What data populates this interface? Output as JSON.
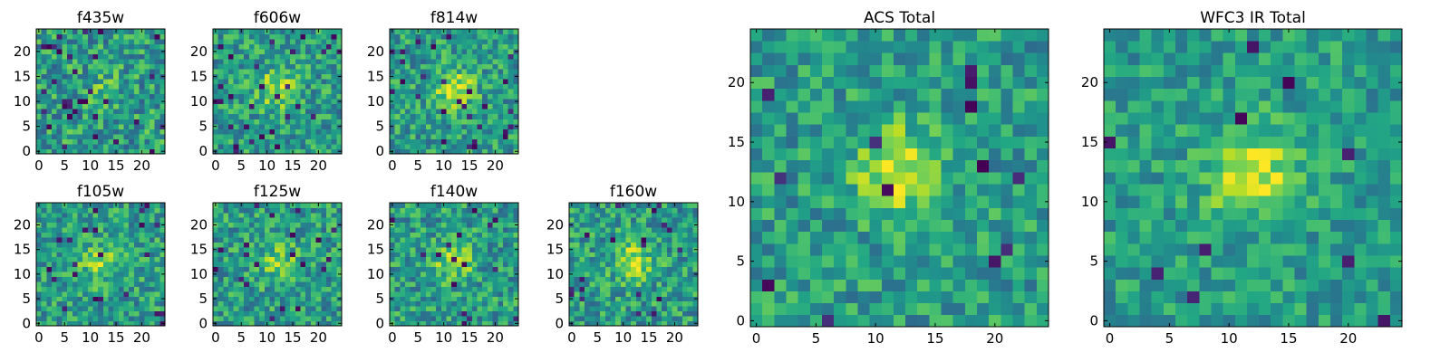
{
  "chart_data": [
    {
      "type": "heatmap",
      "title": "f435w",
      "size": 25,
      "xticks": [
        0,
        5,
        10,
        15,
        20
      ],
      "yticks": [
        0,
        5,
        10,
        15,
        20
      ],
      "xlim": [
        -0.5,
        24.5
      ],
      "ylim": [
        -0.5,
        24.5
      ],
      "seed": 11,
      "peak": 0.1,
      "noise": 0.5,
      "lowrate": 0.05,
      "colormap": "viridis"
    },
    {
      "type": "heatmap",
      "title": "f606w",
      "size": 25,
      "xticks": [
        0,
        5,
        10,
        15,
        20
      ],
      "yticks": [
        0,
        5,
        10,
        15,
        20
      ],
      "xlim": [
        -0.5,
        24.5
      ],
      "ylim": [
        -0.5,
        24.5
      ],
      "seed": 23,
      "peak": 0.35,
      "noise": 0.45,
      "lowrate": 0.04,
      "colormap": "viridis"
    },
    {
      "type": "heatmap",
      "title": "f814w",
      "size": 25,
      "xticks": [
        0,
        5,
        10,
        15,
        20
      ],
      "yticks": [
        0,
        5,
        10,
        15,
        20
      ],
      "xlim": [
        -0.5,
        24.5
      ],
      "ylim": [
        -0.5,
        24.5
      ],
      "seed": 37,
      "peak": 0.4,
      "noise": 0.45,
      "lowrate": 0.03,
      "colormap": "viridis"
    },
    {
      "type": "heatmap",
      "title": "f105w",
      "size": 25,
      "xticks": [
        0,
        5,
        10,
        15,
        20
      ],
      "yticks": [
        0,
        5,
        10,
        15,
        20
      ],
      "xlim": [
        -0.5,
        24.5
      ],
      "ylim": [
        -0.5,
        24.5
      ],
      "seed": 41,
      "peak": 0.3,
      "noise": 0.45,
      "lowrate": 0.03,
      "colormap": "viridis"
    },
    {
      "type": "heatmap",
      "title": "f125w",
      "size": 25,
      "xticks": [
        0,
        5,
        10,
        15,
        20
      ],
      "yticks": [
        0,
        5,
        10,
        15,
        20
      ],
      "xlim": [
        -0.5,
        24.5
      ],
      "ylim": [
        -0.5,
        24.5
      ],
      "seed": 53,
      "peak": 0.25,
      "noise": 0.45,
      "lowrate": 0.03,
      "colormap": "viridis"
    },
    {
      "type": "heatmap",
      "title": "f140w",
      "size": 25,
      "xticks": [
        0,
        5,
        10,
        15,
        20
      ],
      "yticks": [
        0,
        5,
        10,
        15,
        20
      ],
      "xlim": [
        -0.5,
        24.5
      ],
      "ylim": [
        -0.5,
        24.5
      ],
      "seed": 67,
      "peak": 0.3,
      "noise": 0.45,
      "lowrate": 0.03,
      "colormap": "viridis"
    },
    {
      "type": "heatmap",
      "title": "f160w",
      "size": 25,
      "xticks": [
        0,
        5,
        10,
        15,
        20
      ],
      "yticks": [
        0,
        5,
        10,
        15,
        20
      ],
      "xlim": [
        -0.5,
        24.5
      ],
      "ylim": [
        -0.5,
        24.5
      ],
      "seed": 79,
      "peak": 0.35,
      "noise": 0.45,
      "lowrate": 0.03,
      "colormap": "viridis"
    },
    {
      "type": "heatmap",
      "title": "ACS Total",
      "size": 25,
      "xticks": [
        0,
        5,
        10,
        15,
        20
      ],
      "yticks": [
        0,
        5,
        10,
        15,
        20
      ],
      "xlim": [
        -0.5,
        24.5
      ],
      "ylim": [
        -0.5,
        24.5
      ],
      "seed": 97,
      "peak": 0.4,
      "noise": 0.4,
      "lowrate": 0.025,
      "colormap": "viridis"
    },
    {
      "type": "heatmap",
      "title": "WFC3 IR Total",
      "size": 25,
      "xticks": [
        0,
        5,
        10,
        15,
        20
      ],
      "yticks": [
        0,
        5,
        10,
        15,
        20
      ],
      "xlim": [
        -0.5,
        24.5
      ],
      "ylim": [
        -0.5,
        24.5
      ],
      "seed": 131,
      "peak": 0.4,
      "noise": 0.35,
      "lowrate": 0.02,
      "colormap": "viridis"
    }
  ]
}
